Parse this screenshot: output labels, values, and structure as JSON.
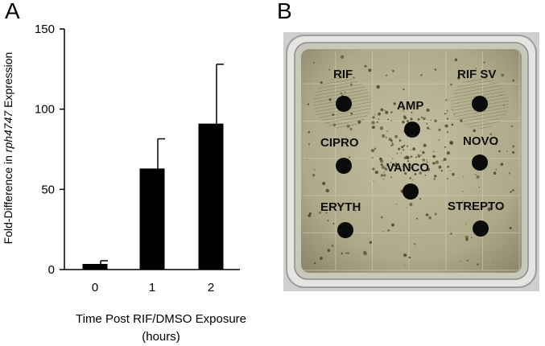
{
  "panels": {
    "a": "A",
    "b": "B"
  },
  "chart_data": {
    "type": "bar",
    "categories": [
      "0",
      "1",
      "2"
    ],
    "values": [
      3.5,
      63,
      91
    ],
    "errors": [
      2,
      18.5,
      37
    ],
    "ylim": [
      0,
      150
    ],
    "yticks": [
      "0",
      "50",
      "100",
      "150"
    ],
    "ylabel_prefix": "Fold-Difference in ",
    "ylabel_gene": "rph4747",
    "ylabel_suffix": " Expression",
    "xlabel_line1": "Time Post RIF/DMSO Exposure",
    "xlabel_line2": "(hours)",
    "bar_color": "#000000"
  },
  "plate": {
    "labels": {
      "rif": "RIF",
      "rif_sv": "RIF SV",
      "amp": "AMP",
      "cipro": "CIPRO",
      "novo": "NOVO",
      "vanco": "VANCO",
      "eryth": "ERYTH",
      "strepto": "STREPTO"
    },
    "agar_color": "#b3ae8e",
    "rim_color": "#d8d8d6"
  }
}
